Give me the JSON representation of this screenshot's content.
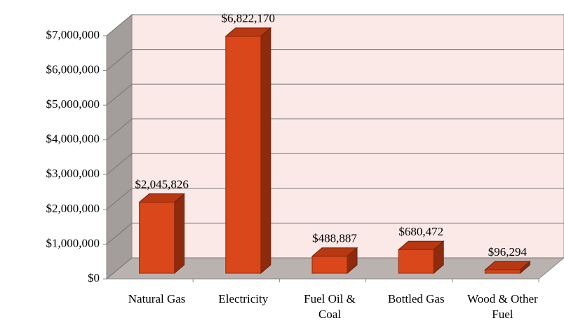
{
  "chart_data": {
    "type": "bar3d",
    "categories": [
      "Natural Gas",
      "Electricity",
      "Fuel Oil & Coal",
      "Bottled Gas",
      "Wood & Other Fuel"
    ],
    "values": [
      2045826,
      6822170,
      488887,
      680472,
      96294
    ],
    "value_labels": [
      "$2,045,826",
      "$6,822,170",
      "$488,887",
      "$680,472",
      "$96,294"
    ],
    "color": "#d9471a",
    "ylim": [
      0,
      7000000
    ],
    "yticks": [
      {
        "value": 0,
        "label": "$0"
      },
      {
        "value": 1000000,
        "label": "$1,000,000"
      },
      {
        "value": 2000000,
        "label": "$2,000,000"
      },
      {
        "value": 3000000,
        "label": "$3,000,000"
      },
      {
        "value": 4000000,
        "label": "$4,000,000"
      },
      {
        "value": 5000000,
        "label": "$5,000,000"
      },
      {
        "value": 6000000,
        "label": "$6,000,000"
      },
      {
        "value": 7000000,
        "label": "$7,000,000"
      }
    ],
    "grid": true
  }
}
